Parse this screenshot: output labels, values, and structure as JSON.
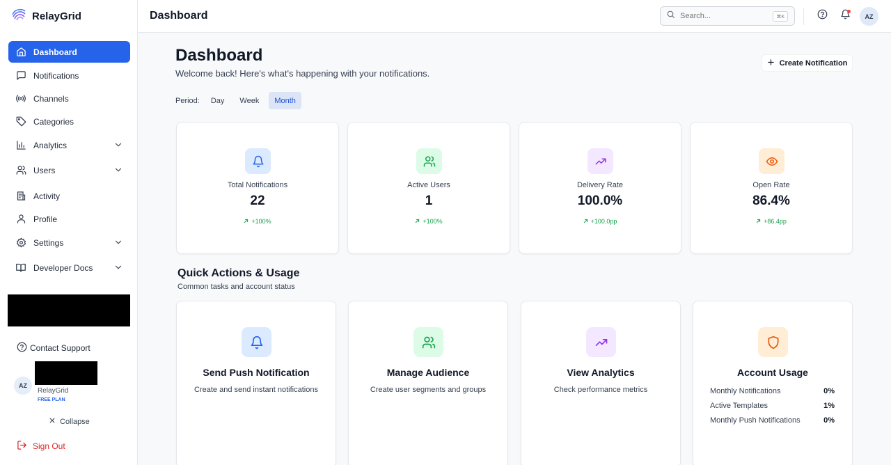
{
  "brand": {
    "name": "RelayGrid"
  },
  "sidebar": {
    "items": [
      {
        "label": "Dashboard"
      },
      {
        "label": "Notifications"
      },
      {
        "label": "Channels"
      },
      {
        "label": "Categories"
      },
      {
        "label": "Analytics"
      },
      {
        "label": "Users"
      },
      {
        "label": "Activity"
      },
      {
        "label": "Profile"
      },
      {
        "label": "Settings"
      },
      {
        "label": "Developer Docs"
      }
    ],
    "contact_support": "Contact Support",
    "user": {
      "initials": "AZ",
      "org": "RelayGrid",
      "plan": "FREE PLAN"
    },
    "collapse": "Collapse",
    "sign_out": "Sign Out"
  },
  "topbar": {
    "title": "Dashboard",
    "search_placeholder": "Search...",
    "shortcut": "⌘K",
    "avatar": "AZ"
  },
  "main": {
    "title": "Dashboard",
    "welcome": "Welcome back! Here's what's happening with your notifications.",
    "create_button": "Create Notification",
    "period": {
      "label": "Period:",
      "options": [
        "Day",
        "Week",
        "Month"
      ],
      "selected": "Month"
    },
    "stats": [
      {
        "label": "Total Notifications",
        "value": "22",
        "change": "+100%"
      },
      {
        "label": "Active Users",
        "value": "1",
        "change": "+100%"
      },
      {
        "label": "Delivery Rate",
        "value": "100.0%",
        "change": "+100.0pp"
      },
      {
        "label": "Open Rate",
        "value": "86.4%",
        "change": "+86.4pp"
      }
    ],
    "quick_actions": {
      "title": "Quick Actions & Usage",
      "subtitle": "Common tasks and account status",
      "cards": [
        {
          "title": "Send Push Notification",
          "desc": "Create and send instant notifications"
        },
        {
          "title": "Manage Audience",
          "desc": "Create user segments and groups"
        },
        {
          "title": "View Analytics",
          "desc": "Check performance metrics"
        },
        {
          "title": "Account Usage",
          "rows": [
            {
              "label": "Monthly Notifications",
              "value": "0%"
            },
            {
              "label": "Active Templates",
              "value": "1%"
            },
            {
              "label": "Monthly Push Notifications",
              "value": "0%"
            }
          ]
        }
      ]
    }
  },
  "colors": {
    "accent": "#2563eb",
    "positive": "#16a34a",
    "danger": "#dc2626"
  }
}
